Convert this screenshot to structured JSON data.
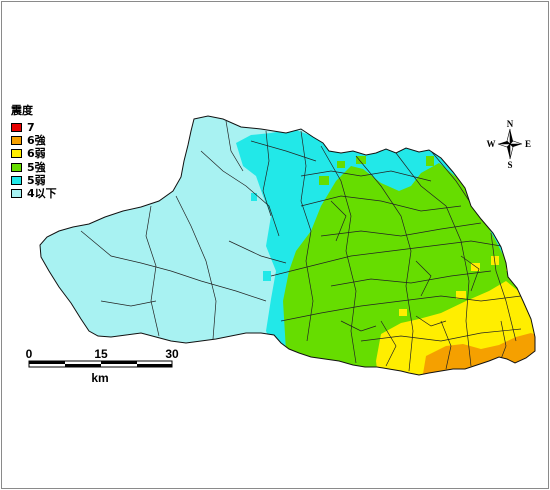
{
  "legend": {
    "title": "震度",
    "items": [
      {
        "label": "7",
        "color": "#e60000"
      },
      {
        "label": "6強",
        "color": "#f5a000"
      },
      {
        "label": "6弱",
        "color": "#ffee00"
      },
      {
        "label": "5強",
        "color": "#66dd00"
      },
      {
        "label": "5弱",
        "color": "#22e8e8"
      },
      {
        "label": "4以下",
        "color": "#a8f2f2"
      }
    ]
  },
  "scale_bar": {
    "ticks": [
      "0",
      "15",
      "30"
    ],
    "unit": "km"
  },
  "compass": {
    "north": "N",
    "south": "S",
    "east": "E",
    "west": "W"
  }
}
